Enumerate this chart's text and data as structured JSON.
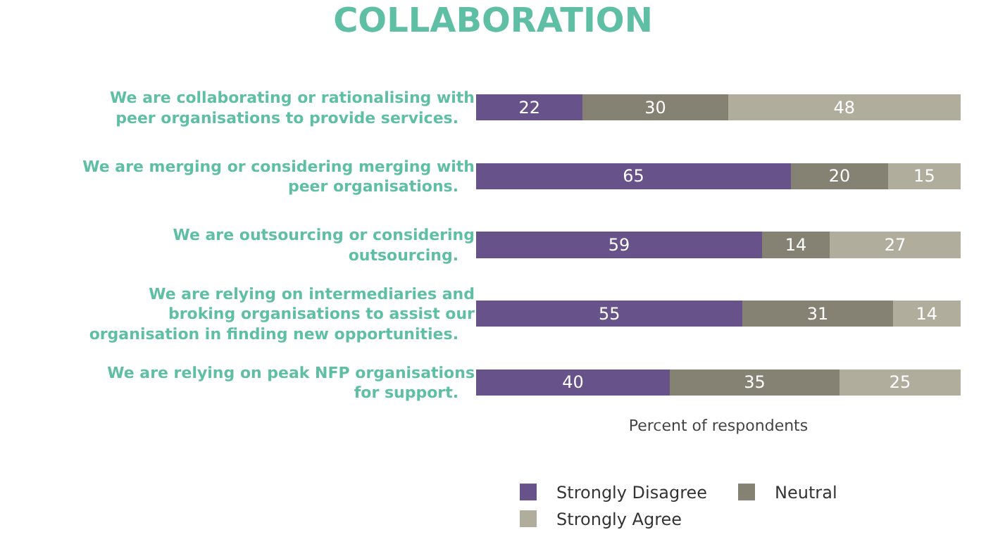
{
  "chart_data": {
    "type": "bar",
    "orientation": "horizontal",
    "stacked": true,
    "title": "COLLABORATION",
    "xlabel": "Percent of respondents",
    "categories": [
      "We are collaborating or rationalising with peer organisations to provide services.",
      "We are merging or considering merging with peer organisations.",
      "We are outsourcing or considering outsourcing.",
      "We are relying on intermediaries and broking organisations to assist our organisation in finding new opportunities.",
      "We are relying on peak NFP organisations for support."
    ],
    "series": [
      {
        "name": "Strongly Disagree",
        "color": "#67538a",
        "values": [
          22,
          65,
          59,
          55,
          40
        ]
      },
      {
        "name": "Neutral",
        "color": "#858274",
        "values": [
          30,
          20,
          14,
          31,
          35
        ]
      },
      {
        "name": "Strongly Agree",
        "color": "#b0ad9d",
        "values": [
          48,
          15,
          27,
          14,
          25
        ]
      }
    ],
    "xlim": [
      0,
      100
    ],
    "data_labels": true,
    "tick_labels": "y",
    "grid": false,
    "legend": "bottom"
  }
}
